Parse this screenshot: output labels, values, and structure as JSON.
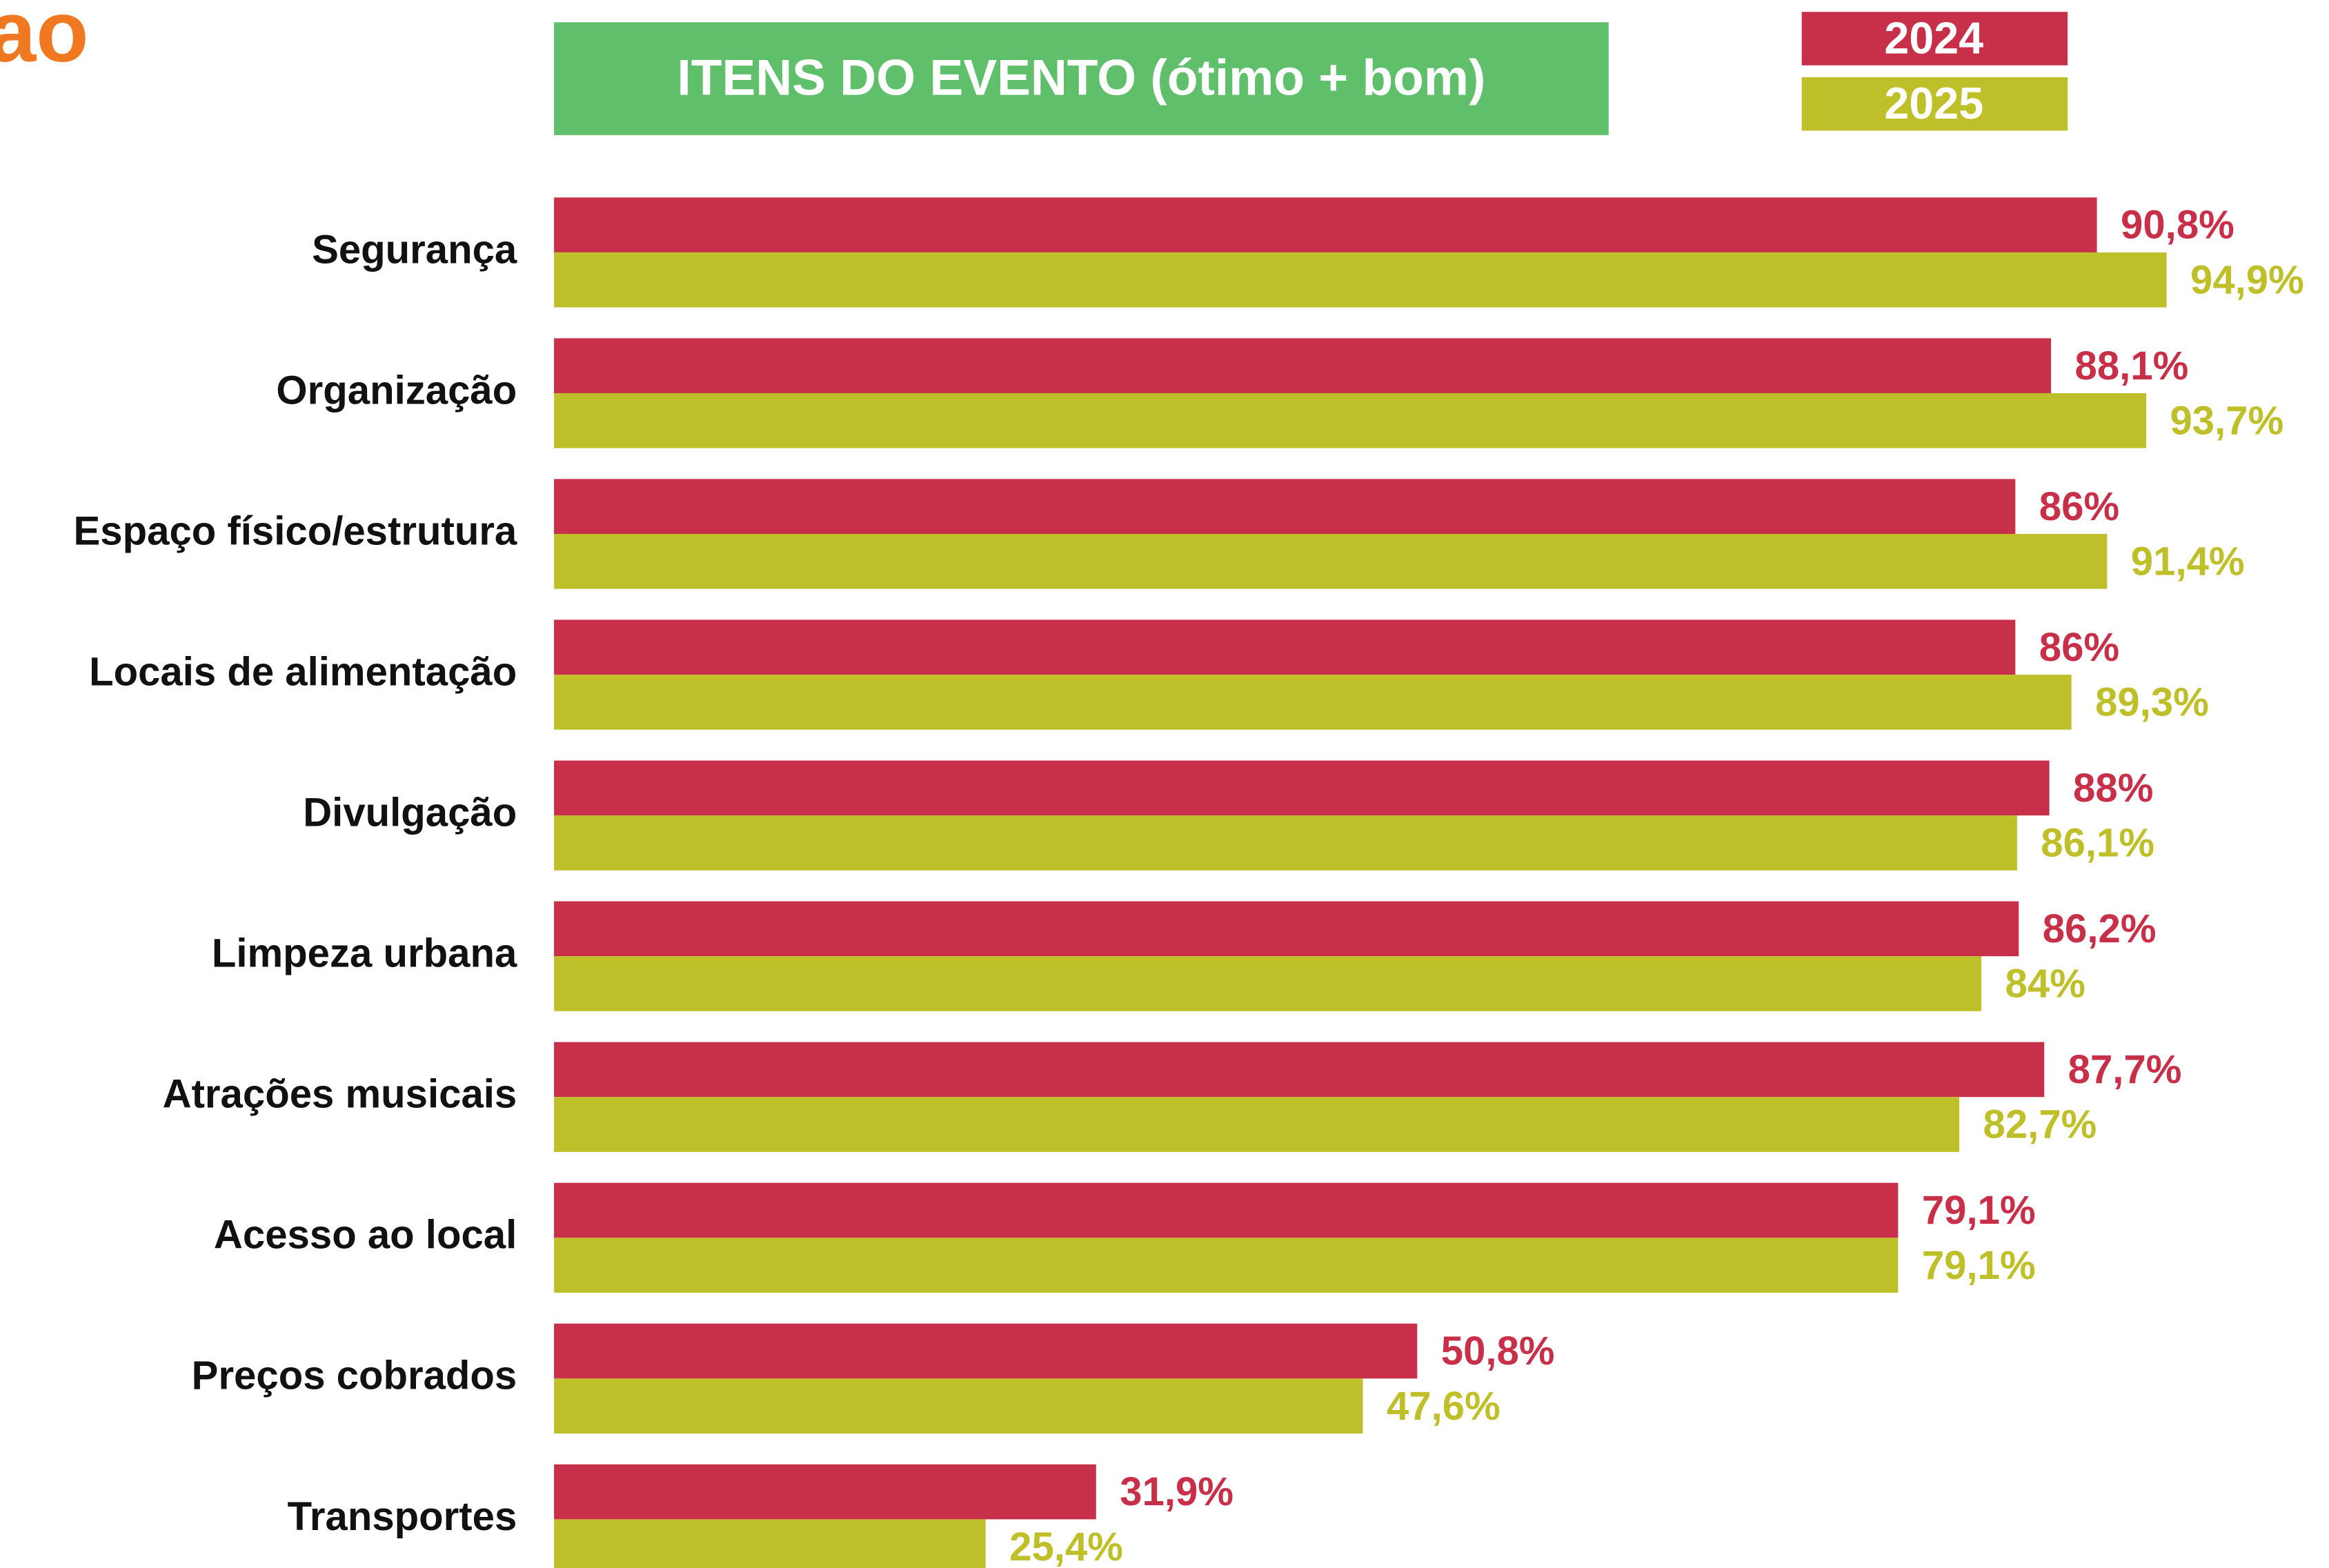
{
  "logo": "ao",
  "chart_data": {
    "type": "hbar",
    "title": "ITENS DO EVENTO (ótimo + bom)",
    "categories": [
      "Segurança",
      "Organização",
      "Espaço físico/estrutura",
      "Locais de alimentação",
      "Divulgação",
      "Limpeza urbana",
      "Atrações musicais",
      "Acesso ao local",
      "Preços cobrados",
      "Transportes"
    ],
    "xlim": [
      0,
      100
    ],
    "legend": "top-right",
    "series": [
      {
        "name": "2024",
        "color": "#c8304a",
        "values": [
          90.8,
          88.1,
          86,
          86,
          88,
          86.2,
          87.7,
          79.1,
          50.8,
          31.9
        ],
        "value_labels": [
          "90,8%",
          "88,1%",
          "86%",
          "86%",
          "88%",
          "86,2%",
          "87,7%",
          "79,1%",
          "50,8%",
          "31,9%"
        ]
      },
      {
        "name": "2025",
        "color": "#bfbf2a",
        "values": [
          94.9,
          93.7,
          91.4,
          89.3,
          86.1,
          84,
          82.7,
          79.1,
          47.6,
          25.4
        ],
        "value_labels": [
          "94,9%",
          "93,7%",
          "91,4%",
          "89,3%",
          "86,1%",
          "84%",
          "82,7%",
          "79,1%",
          "47,6%",
          "25,4%"
        ]
      }
    ]
  }
}
